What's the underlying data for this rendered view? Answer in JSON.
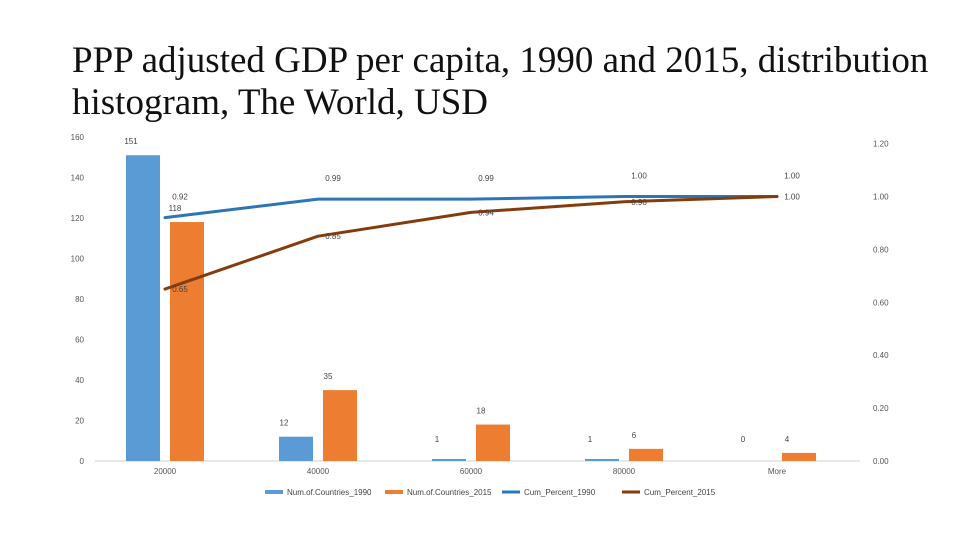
{
  "title": "PPP adjusted GDP per capita, 1990 and 2015, distribution histogram, The World, USD",
  "chart_data": {
    "type": "bar",
    "categories": [
      "20000",
      "40000",
      "60000",
      "80000",
      "More"
    ],
    "left_axis": {
      "min": 0,
      "max": 160,
      "ticks": [
        "0",
        "20",
        "40",
        "60",
        "80",
        "100",
        "120",
        "140",
        "160"
      ]
    },
    "right_axis": {
      "ticks": [
        "0.00",
        "0.20",
        "0.40",
        "0.60",
        "0.80",
        "1.00",
        "1.20"
      ]
    },
    "bar_series": [
      {
        "name": "Num.of.Countries_1990",
        "color": "#5B9BD5",
        "values": [
          151,
          12,
          1,
          1,
          0
        ],
        "labels": [
          "151",
          "12",
          "1",
          "1",
          "0"
        ]
      },
      {
        "name": "Num.of.Countries_2015",
        "color": "#ED7D31",
        "values": [
          118,
          35,
          18,
          6,
          4
        ],
        "labels": [
          "118",
          "35",
          "18",
          "6",
          "4"
        ]
      }
    ],
    "line_series": [
      {
        "name": "Cum_Percent_1990",
        "color": "#2E75B6",
        "values": [
          0.92,
          0.99,
          0.99,
          1.0,
          1.0
        ],
        "labels": [
          "0.92",
          "0.99",
          "0.99",
          "1.00",
          "1.00"
        ]
      },
      {
        "name": "Cum_Percent_2015",
        "color": "#843C0C",
        "values": [
          0.65,
          0.85,
          0.94,
          0.98,
          1.0
        ],
        "labels": [
          "0.65",
          "0.85",
          "0.94",
          "0.98",
          "1.00"
        ]
      }
    ],
    "legend": [
      "Num.of.Countries_1990",
      "Num.of.Countries_2015",
      "Cum_Percent_1990",
      "Cum_Percent_2015"
    ],
    "legend_position": "bottom"
  }
}
